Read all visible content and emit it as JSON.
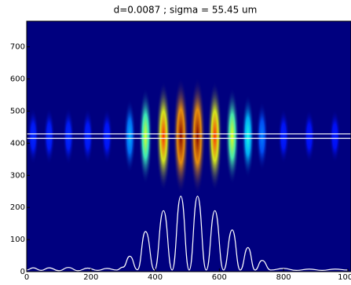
{
  "chart_data": {
    "type": "heatmap-profile",
    "title": "d=0.0087  ; sigma =  55.45 um",
    "xlim": [
      0,
      1010
    ],
    "ylim": [
      0,
      780
    ],
    "xticks": [
      0,
      200,
      400,
      600,
      800,
      1000
    ],
    "yticks": [
      0,
      100,
      200,
      300,
      400,
      500,
      600,
      700
    ],
    "roi": [
      415,
      429
    ],
    "background": "#00007f",
    "line_color": "#ffffff",
    "profile": {
      "x": [
        0,
        20,
        45,
        70,
        100,
        130,
        160,
        190,
        220,
        250,
        280,
        300,
        321,
        345,
        370,
        398,
        426,
        453,
        480,
        506,
        532,
        559,
        586,
        613,
        640,
        665,
        689,
        711,
        733,
        760,
        800,
        840,
        880,
        920,
        960,
        1000
      ],
      "values": [
        5,
        12,
        4,
        12,
        3,
        13,
        3,
        11,
        4,
        10,
        5,
        14,
        48,
        6,
        125,
        5,
        190,
        5,
        235,
        5,
        235,
        5,
        190,
        5,
        130,
        5,
        75,
        5,
        35,
        5,
        10,
        4,
        8,
        4,
        8,
        5
      ]
    }
  }
}
